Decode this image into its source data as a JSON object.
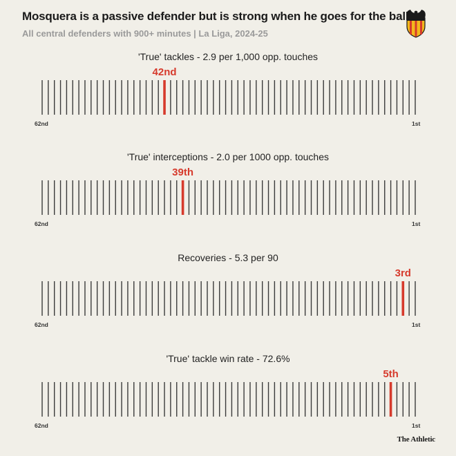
{
  "header": {
    "title": "Mosquera is a passive defender but is strong when he goes for the ball",
    "subtitle": "All central defenders with 900+ minutes | La Liga, 2024-25"
  },
  "colors": {
    "highlight": "#d63a2c",
    "tick": "#3a3a3a",
    "background": "#f1efe8"
  },
  "crest_icon": "valencia-bat-crest",
  "chart_data": [
    {
      "type": "strip",
      "title": "'True' tackles - 2.9 per 1,000 opp. touches",
      "total": 62,
      "highlight_rank": 42,
      "highlight_label": "42nd",
      "left_label": "62nd",
      "right_label": "1st"
    },
    {
      "type": "strip",
      "title": "'True' interceptions - 2.0 per 1000 opp. touches",
      "total": 62,
      "highlight_rank": 39,
      "highlight_label": "39th",
      "left_label": "62nd",
      "right_label": "1st"
    },
    {
      "type": "strip",
      "title": "Recoveries - 5.3 per 90",
      "total": 62,
      "highlight_rank": 3,
      "highlight_label": "3rd",
      "left_label": "62nd",
      "right_label": "1st"
    },
    {
      "type": "strip",
      "title": "'True' tackle win rate - 72.6%",
      "total": 62,
      "highlight_rank": 5,
      "highlight_label": "5th",
      "left_label": "62nd",
      "right_label": "1st"
    }
  ],
  "footer": {
    "brand": "The Athletic"
  }
}
